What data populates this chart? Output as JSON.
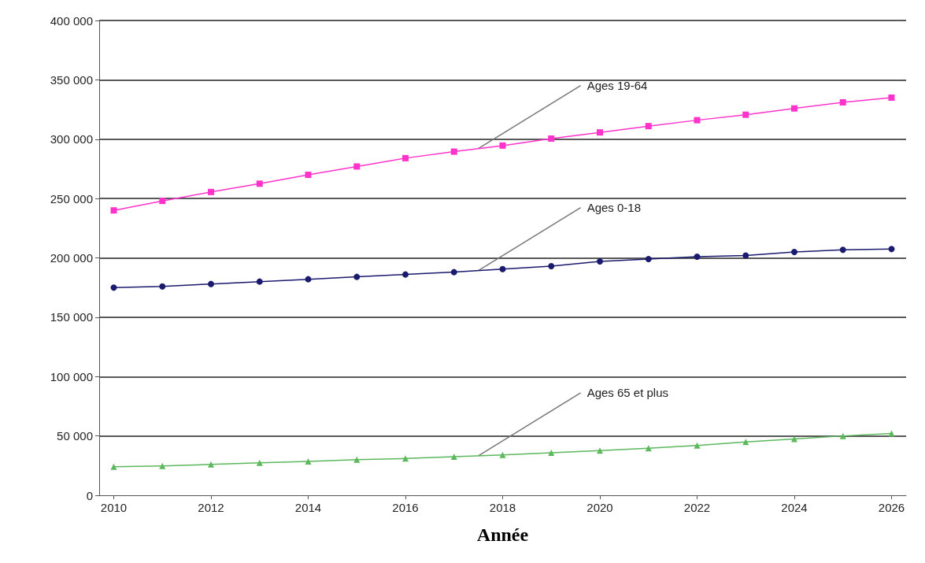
{
  "chart_data": {
    "type": "line",
    "xlabel": "Année",
    "x": [
      2010,
      2011,
      2012,
      2013,
      2014,
      2015,
      2016,
      2017,
      2018,
      2019,
      2020,
      2021,
      2022,
      2023,
      2024,
      2025,
      2026
    ],
    "series": [
      {
        "name": "Ages 19-64",
        "color": "#ff33cc",
        "marker": "square",
        "values": [
          240000,
          248000,
          255500,
          262500,
          270000,
          277000,
          284000,
          289500,
          294600,
          300500,
          305700,
          311000,
          316000,
          320600,
          325900,
          331000,
          335000
        ]
      },
      {
        "name": "Ages 0-18",
        "color": "#1a1a6e",
        "marker": "circle",
        "values": [
          175000,
          176000,
          178000,
          180000,
          182000,
          184000,
          186000,
          188000,
          190500,
          193000,
          197000,
          199000,
          201000,
          202000,
          205000,
          206800,
          207500
        ]
      },
      {
        "name": "Ages 65 et plus",
        "color": "#5cb85c",
        "marker": "triangle",
        "values": [
          24000,
          24700,
          26000,
          27300,
          28600,
          30000,
          31000,
          32500,
          34000,
          35800,
          37700,
          39700,
          42000,
          45000,
          47500,
          50000,
          52000
        ]
      }
    ],
    "xlim": [
      2009.7,
      2026.3
    ],
    "xticks": [
      2010,
      2012,
      2014,
      2016,
      2018,
      2020,
      2022,
      2024,
      2026
    ],
    "ylim": [
      0,
      400000
    ],
    "yticks": [
      {
        "value": 0,
        "label": "0"
      },
      {
        "value": 50000,
        "label": "50 000"
      },
      {
        "value": 100000,
        "label": "100 000"
      },
      {
        "value": 150000,
        "label": "150 000"
      },
      {
        "value": 200000,
        "label": "200 000"
      },
      {
        "value": 250000,
        "label": "250 000"
      },
      {
        "value": 300000,
        "label": "300 000"
      },
      {
        "value": 350000,
        "label": "350 000"
      },
      {
        "value": 400000,
        "label": "400 000"
      }
    ],
    "grid": "y",
    "legend": false,
    "line_style": "solid"
  }
}
